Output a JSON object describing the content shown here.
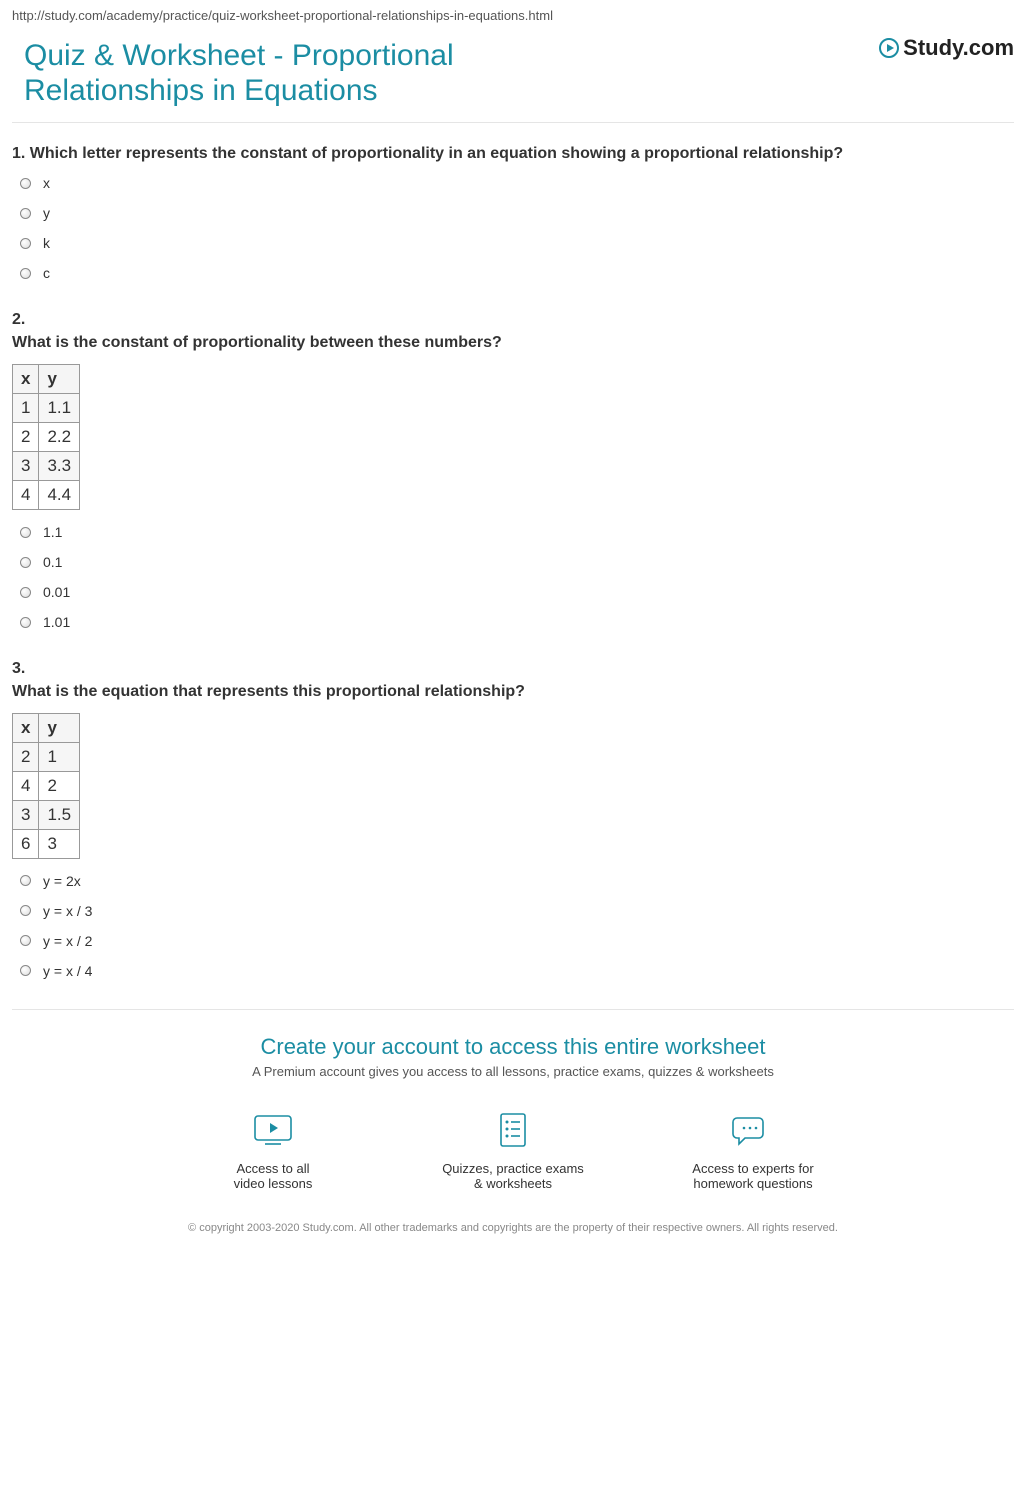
{
  "url": "http://study.com/academy/practice/quiz-worksheet-proportional-relationships-in-equations.html",
  "brand": {
    "name": "Study.com"
  },
  "page_title": "Quiz & Worksheet - Proportional Relationships in Equations",
  "questions": [
    {
      "number": "1.",
      "text": "Which letter represents the constant of proportionality in an equation showing a proportional relationship?",
      "inline_number": true,
      "options": [
        "x",
        "y",
        "k",
        "c"
      ]
    },
    {
      "number": "2.",
      "text": "What is the constant of proportionality between these numbers?",
      "inline_number": false,
      "table": {
        "columns": [
          "x",
          "y"
        ],
        "rows": [
          [
            "1",
            "1.1"
          ],
          [
            "2",
            "2.2"
          ],
          [
            "3",
            "3.3"
          ],
          [
            "4",
            "4.4"
          ]
        ]
      },
      "options": [
        "1.1",
        "0.1",
        "0.01",
        "1.01"
      ]
    },
    {
      "number": "3.",
      "text": "What is the equation that represents this proportional relationship?",
      "inline_number": false,
      "table": {
        "columns": [
          "x",
          "y"
        ],
        "rows": [
          [
            "2",
            "1"
          ],
          [
            "4",
            "2"
          ],
          [
            "3",
            "1.5"
          ],
          [
            "6",
            "3"
          ]
        ]
      },
      "options": [
        "y = 2x",
        "y = x / 3",
        "y = x / 2",
        "y = x / 4"
      ]
    }
  ],
  "cta": {
    "heading": "Create your account to access this entire worksheet",
    "sub": "A Premium account gives you access to all lessons, practice exams, quizzes & worksheets",
    "features": [
      {
        "icon": "video",
        "line1": "Access to all",
        "line2": "video lessons"
      },
      {
        "icon": "quiz",
        "line1": "Quizzes, practice exams",
        "line2": "& worksheets"
      },
      {
        "icon": "chat",
        "line1": "Access to experts for",
        "line2": "homework questions"
      }
    ]
  },
  "copyright": "© copyright 2003-2020 Study.com. All other trademarks and copyrights are the property of their respective owners. All rights reserved.",
  "colors": {
    "accent": "#1b8da3",
    "text": "#333333",
    "muted": "#888888",
    "border": "#e5e5e5"
  }
}
